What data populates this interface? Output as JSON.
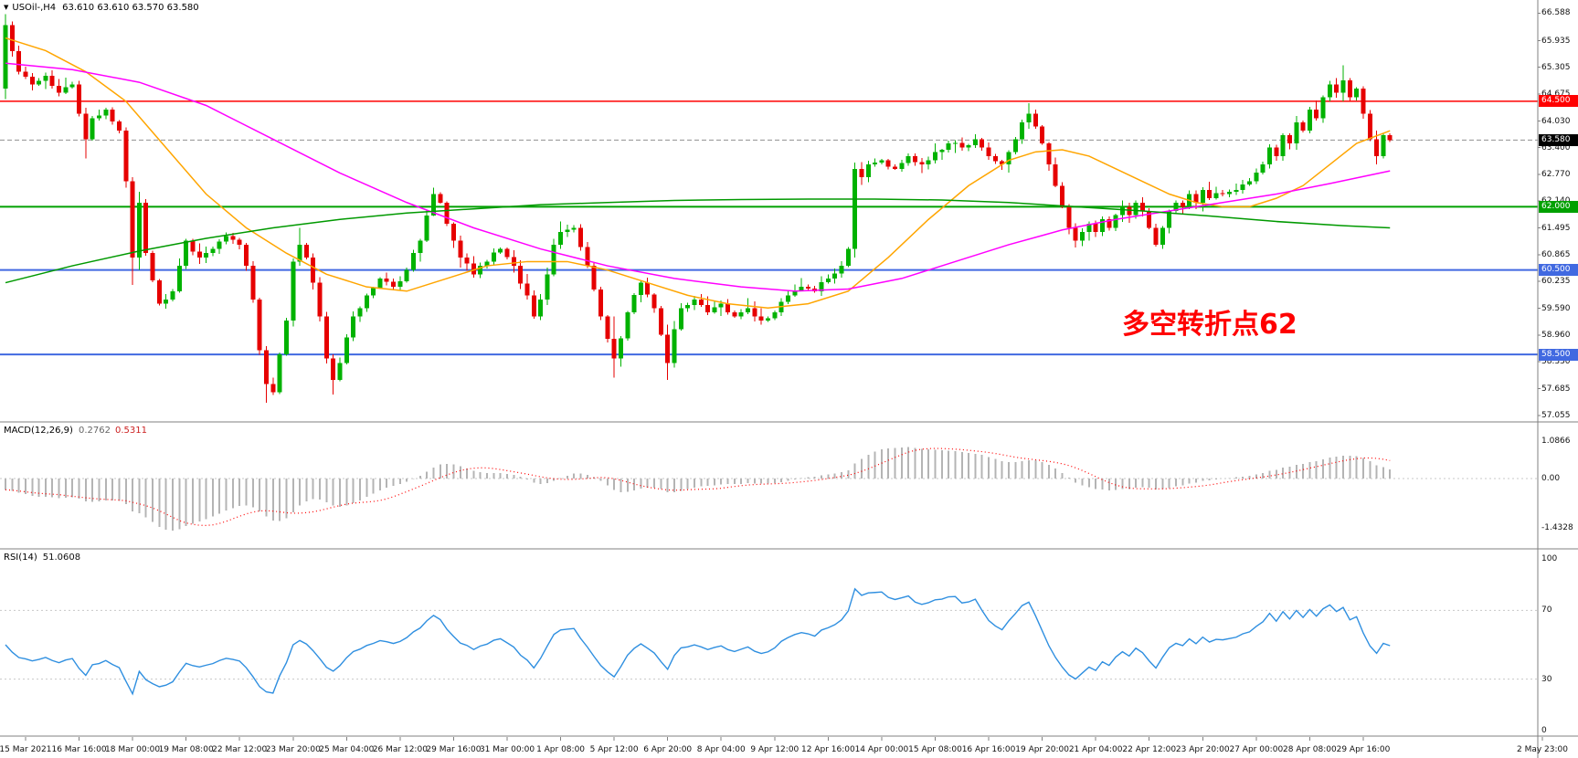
{
  "window": {
    "symbol_timeframe": "USOil-,H4",
    "ohlc": "63.610 63.610 63.570 63.580"
  },
  "indicator_labels": {
    "macd_name": "MACD(12,26,9)",
    "macd_main": "0.2762",
    "macd_signal": "0.5311",
    "rsi_name": "RSI(14)",
    "rsi_value": "51.0608"
  },
  "annotation": {
    "text": "多空转折点62",
    "color": "#FF0000"
  },
  "chart_data": {
    "type": "candlestick",
    "title": "USOil- H4",
    "n_candles": 208,
    "ylim": [
      56.92,
      66.9
    ],
    "price_ticks": [
      "66.588",
      "65.935",
      "65.305",
      "64.675",
      "64.030",
      "63.400",
      "62.770",
      "62.140",
      "61.495",
      "60.865",
      "60.235",
      "59.590",
      "58.960",
      "58.330",
      "57.685",
      "57.055"
    ],
    "time_labels": [
      "15 Mar 2021",
      "16 Mar 16:00",
      "18 Mar 00:00",
      "19 Mar 08:00",
      "22 Mar 12:00",
      "23 Mar 20:00",
      "25 Mar 04:00",
      "26 Mar 12:00",
      "29 Mar 16:00",
      "31 Mar 00:00",
      "1 Apr 08:00",
      "5 Apr 12:00",
      "6 Apr 20:00",
      "8 Apr 04:00",
      "9 Apr 12:00",
      "12 Apr 16:00",
      "14 Apr 00:00",
      "15 Apr 08:00",
      "16 Apr 16:00",
      "19 Apr 20:00",
      "21 Apr 04:00",
      "22 Apr 12:00",
      "23 Apr 20:00",
      "27 Apr 00:00",
      "28 Apr 08:00",
      "29 Apr 16:00"
    ],
    "future_time_label": "2 May 23:00",
    "first_open": 64.8,
    "close_anchors": [
      [
        0,
        66.3
      ],
      [
        2,
        65.2
      ],
      [
        4,
        64.9
      ],
      [
        6,
        65.1
      ],
      [
        8,
        64.7
      ],
      [
        10,
        64.9
      ],
      [
        12,
        63.6
      ],
      [
        13,
        64.1
      ],
      [
        15,
        64.3
      ],
      [
        17,
        63.8
      ],
      [
        18,
        62.6
      ],
      [
        19,
        60.8
      ],
      [
        20,
        62.1
      ],
      [
        21,
        60.9
      ],
      [
        23,
        59.7
      ],
      [
        25,
        60.0
      ],
      [
        27,
        61.2
      ],
      [
        29,
        60.8
      ],
      [
        31,
        61.0
      ],
      [
        33,
        61.3
      ],
      [
        35,
        61.1
      ],
      [
        36,
        60.6
      ],
      [
        37,
        59.8
      ],
      [
        38,
        58.6
      ],
      [
        39,
        57.8
      ],
      [
        40,
        57.6
      ],
      [
        41,
        58.5
      ],
      [
        42,
        59.3
      ],
      [
        43,
        60.7
      ],
      [
        44,
        61.1
      ],
      [
        45,
        60.8
      ],
      [
        46,
        60.2
      ],
      [
        47,
        59.4
      ],
      [
        48,
        58.4
      ],
      [
        49,
        57.9
      ],
      [
        50,
        58.3
      ],
      [
        51,
        58.9
      ],
      [
        52,
        59.4
      ],
      [
        54,
        59.9
      ],
      [
        56,
        60.3
      ],
      [
        58,
        60.1
      ],
      [
        60,
        60.5
      ],
      [
        62,
        61.2
      ],
      [
        64,
        62.3
      ],
      [
        65,
        62.1
      ],
      [
        66,
        61.6
      ],
      [
        67,
        61.2
      ],
      [
        68,
        60.8
      ],
      [
        70,
        60.4
      ],
      [
        72,
        60.7
      ],
      [
        74,
        61.0
      ],
      [
        76,
        60.6
      ],
      [
        78,
        59.9
      ],
      [
        79,
        59.4
      ],
      [
        80,
        59.8
      ],
      [
        81,
        60.4
      ],
      [
        82,
        61.1
      ],
      [
        83,
        61.4
      ],
      [
        85,
        61.5
      ],
      [
        87,
        60.6
      ],
      [
        89,
        59.4
      ],
      [
        91,
        58.4
      ],
      [
        93,
        59.5
      ],
      [
        95,
        60.2
      ],
      [
        97,
        59.6
      ],
      [
        99,
        58.3
      ],
      [
        100,
        59.1
      ],
      [
        101,
        59.6
      ],
      [
        103,
        59.8
      ],
      [
        105,
        59.5
      ],
      [
        107,
        59.7
      ],
      [
        109,
        59.4
      ],
      [
        111,
        59.6
      ],
      [
        113,
        59.3
      ],
      [
        115,
        59.5
      ],
      [
        117,
        59.9
      ],
      [
        119,
        60.1
      ],
      [
        121,
        60.0
      ],
      [
        123,
        60.3
      ],
      [
        125,
        60.6
      ],
      [
        126,
        61.0
      ],
      [
        127,
        62.9
      ],
      [
        128,
        62.7
      ],
      [
        129,
        63.0
      ],
      [
        131,
        63.1
      ],
      [
        133,
        62.9
      ],
      [
        135,
        63.2
      ],
      [
        137,
        63.0
      ],
      [
        139,
        63.3
      ],
      [
        141,
        63.5
      ],
      [
        143,
        63.4
      ],
      [
        145,
        63.6
      ],
      [
        147,
        63.2
      ],
      [
        149,
        63.0
      ],
      [
        150,
        63.3
      ],
      [
        151,
        63.6
      ],
      [
        152,
        64.0
      ],
      [
        153,
        64.2
      ],
      [
        154,
        63.9
      ],
      [
        155,
        63.5
      ],
      [
        156,
        63.0
      ],
      [
        157,
        62.5
      ],
      [
        158,
        62.0
      ],
      [
        159,
        61.5
      ],
      [
        160,
        61.2
      ],
      [
        161,
        61.4
      ],
      [
        162,
        61.6
      ],
      [
        163,
        61.4
      ],
      [
        164,
        61.7
      ],
      [
        165,
        61.5
      ],
      [
        166,
        61.8
      ],
      [
        167,
        62.0
      ],
      [
        168,
        61.8
      ],
      [
        169,
        62.1
      ],
      [
        170,
        61.9
      ],
      [
        171,
        61.5
      ],
      [
        172,
        61.1
      ],
      [
        173,
        61.5
      ],
      [
        174,
        61.9
      ],
      [
        175,
        62.1
      ],
      [
        176,
        62.0
      ],
      [
        177,
        62.3
      ],
      [
        178,
        62.1
      ],
      [
        179,
        62.4
      ],
      [
        180,
        62.2
      ],
      [
        182,
        62.3
      ],
      [
        184,
        62.4
      ],
      [
        186,
        62.6
      ],
      [
        188,
        63.0
      ],
      [
        189,
        63.4
      ],
      [
        190,
        63.2
      ],
      [
        191,
        63.7
      ],
      [
        192,
        63.5
      ],
      [
        193,
        64.0
      ],
      [
        194,
        63.8
      ],
      [
        195,
        64.3
      ],
      [
        196,
        64.1
      ],
      [
        197,
        64.6
      ],
      [
        198,
        64.9
      ],
      [
        199,
        64.7
      ],
      [
        200,
        65.0
      ],
      [
        201,
        64.6
      ],
      [
        202,
        64.8
      ],
      [
        203,
        64.2
      ],
      [
        204,
        63.6
      ],
      [
        205,
        63.2
      ],
      [
        206,
        63.7
      ],
      [
        207,
        63.58
      ]
    ],
    "wick_overrides": {
      "0": [
        66.56,
        64.55
      ],
      "12": [
        64.35,
        63.15
      ],
      "19": [
        62.7,
        60.15
      ],
      "20": [
        62.35,
        60.5
      ],
      "39": [
        58.7,
        57.35
      ],
      "44": [
        61.5,
        60.6
      ],
      "49": [
        58.5,
        57.55
      ],
      "64": [
        62.45,
        61.85
      ],
      "83": [
        61.65,
        61.0
      ],
      "91": [
        59.4,
        57.95
      ],
      "99": [
        59.2,
        57.9
      ],
      "127": [
        63.05,
        60.8
      ],
      "153": [
        64.45,
        63.85
      ],
      "200": [
        65.35,
        64.5
      ],
      "205": [
        63.8,
        63.0
      ]
    },
    "horizontal_lines": [
      {
        "price": 64.5,
        "label": "64.500",
        "color": "#FF0000"
      },
      {
        "price": 62.0,
        "label": "62.000",
        "color": "#00A000"
      },
      {
        "price": 60.5,
        "label": "60.500",
        "color": "#4169E1"
      },
      {
        "price": 58.5,
        "label": "58.500",
        "color": "#4169E1"
      }
    ],
    "last_price": {
      "value": 63.58,
      "label": "63.580"
    },
    "moving_averages": [
      {
        "name": "ma-gold",
        "color": "#FFA500",
        "points": [
          [
            0,
            66.0
          ],
          [
            6,
            65.7
          ],
          [
            12,
            65.2
          ],
          [
            18,
            64.5
          ],
          [
            24,
            63.4
          ],
          [
            30,
            62.3
          ],
          [
            36,
            61.5
          ],
          [
            42,
            60.9
          ],
          [
            48,
            60.4
          ],
          [
            54,
            60.1
          ],
          [
            60,
            60.0
          ],
          [
            66,
            60.3
          ],
          [
            72,
            60.6
          ],
          [
            78,
            60.7
          ],
          [
            84,
            60.7
          ],
          [
            90,
            60.5
          ],
          [
            96,
            60.2
          ],
          [
            102,
            59.9
          ],
          [
            108,
            59.7
          ],
          [
            114,
            59.6
          ],
          [
            120,
            59.7
          ],
          [
            126,
            60.0
          ],
          [
            132,
            60.8
          ],
          [
            138,
            61.7
          ],
          [
            144,
            62.5
          ],
          [
            150,
            63.1
          ],
          [
            154,
            63.3
          ],
          [
            158,
            63.35
          ],
          [
            162,
            63.2
          ],
          [
            166,
            62.9
          ],
          [
            170,
            62.6
          ],
          [
            174,
            62.3
          ],
          [
            178,
            62.1
          ],
          [
            182,
            62.0
          ],
          [
            186,
            62.0
          ],
          [
            190,
            62.2
          ],
          [
            194,
            62.5
          ],
          [
            198,
            63.0
          ],
          [
            202,
            63.5
          ],
          [
            207,
            63.8
          ]
        ]
      },
      {
        "name": "ma-magenta",
        "color": "#FF00FF",
        "points": [
          [
            0,
            65.4
          ],
          [
            10,
            65.25
          ],
          [
            20,
            64.95
          ],
          [
            30,
            64.4
          ],
          [
            40,
            63.6
          ],
          [
            50,
            62.8
          ],
          [
            60,
            62.1
          ],
          [
            70,
            61.5
          ],
          [
            80,
            61.0
          ],
          [
            90,
            60.6
          ],
          [
            100,
            60.3
          ],
          [
            110,
            60.1
          ],
          [
            118,
            60.0
          ],
          [
            126,
            60.05
          ],
          [
            134,
            60.3
          ],
          [
            142,
            60.7
          ],
          [
            150,
            61.1
          ],
          [
            158,
            61.45
          ],
          [
            166,
            61.7
          ],
          [
            174,
            61.9
          ],
          [
            182,
            62.1
          ],
          [
            190,
            62.3
          ],
          [
            198,
            62.55
          ],
          [
            207,
            62.85
          ]
        ]
      },
      {
        "name": "ma-green",
        "color": "#009900",
        "points": [
          [
            0,
            60.2
          ],
          [
            10,
            60.6
          ],
          [
            20,
            60.95
          ],
          [
            30,
            61.25
          ],
          [
            40,
            61.5
          ],
          [
            50,
            61.7
          ],
          [
            60,
            61.85
          ],
          [
            70,
            61.95
          ],
          [
            80,
            62.05
          ],
          [
            90,
            62.1
          ],
          [
            100,
            62.15
          ],
          [
            110,
            62.17
          ],
          [
            120,
            62.18
          ],
          [
            130,
            62.18
          ],
          [
            140,
            62.16
          ],
          [
            150,
            62.1
          ],
          [
            160,
            62.0
          ],
          [
            170,
            61.9
          ],
          [
            180,
            61.78
          ],
          [
            190,
            61.65
          ],
          [
            200,
            61.55
          ],
          [
            207,
            61.5
          ]
        ]
      }
    ],
    "indicators": [
      {
        "type": "macd",
        "params": [
          12,
          26,
          9
        ],
        "y_ticks": [
          "1.0866",
          "0.00",
          "-1.4328"
        ],
        "hist_color": "#B4B4B4",
        "signal_color": "#FF0000"
      },
      {
        "type": "rsi",
        "period": 14,
        "levels": [
          70,
          30
        ],
        "y_ticks": [
          "100",
          "70",
          "30",
          "0"
        ],
        "color": "#2F8FE0"
      }
    ],
    "candle_colors": {
      "up": "#00B200",
      "down": "#E60000"
    }
  }
}
